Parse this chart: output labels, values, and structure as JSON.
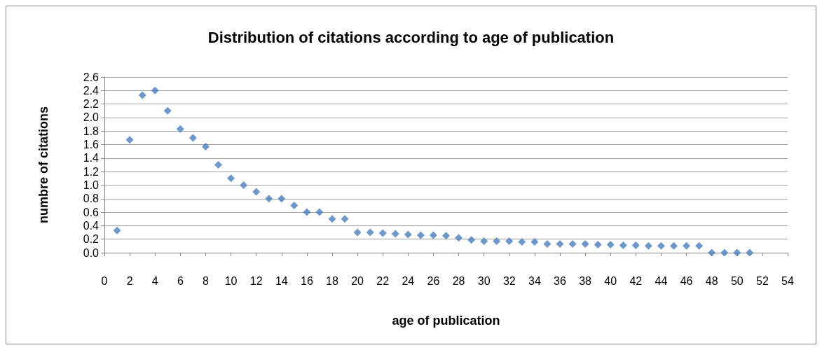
{
  "chart_data": {
    "type": "scatter",
    "title": "Distribution of citations according to age of publication",
    "xlabel": "age of publication",
    "ylabel": "numbre of citations",
    "x": [
      1,
      2,
      3,
      4,
      5,
      6,
      7,
      8,
      9,
      10,
      11,
      12,
      13,
      14,
      15,
      16,
      17,
      18,
      19,
      20,
      21,
      22,
      23,
      24,
      25,
      26,
      27,
      28,
      29,
      30,
      31,
      32,
      33,
      34,
      35,
      36,
      37,
      38,
      39,
      40,
      41,
      42,
      43,
      44,
      45,
      46,
      47,
      48,
      49,
      50,
      51
    ],
    "values": [
      0.33,
      1.67,
      2.33,
      2.4,
      2.1,
      1.83,
      1.7,
      1.57,
      1.3,
      1.1,
      1.0,
      0.9,
      0.8,
      0.8,
      0.7,
      0.6,
      0.6,
      0.5,
      0.5,
      0.3,
      0.3,
      0.29,
      0.28,
      0.27,
      0.26,
      0.26,
      0.25,
      0.22,
      0.19,
      0.17,
      0.17,
      0.17,
      0.16,
      0.16,
      0.13,
      0.13,
      0.13,
      0.13,
      0.12,
      0.12,
      0.11,
      0.11,
      0.1,
      0.1,
      0.1,
      0.1,
      0.1,
      0,
      0,
      0,
      0
    ],
    "color": "#4a7ebb",
    "marker": "diamond",
    "grid": "y",
    "xlim": [
      0,
      54
    ],
    "xticks": [
      0,
      2,
      4,
      6,
      8,
      10,
      12,
      14,
      16,
      18,
      20,
      22,
      24,
      26,
      28,
      30,
      32,
      34,
      36,
      38,
      40,
      42,
      44,
      46,
      48,
      50,
      52,
      54
    ],
    "ylim": [
      0,
      2.6
    ],
    "yticks": [
      {
        "value": 0,
        "label": "0.0"
      },
      {
        "value": 0.2,
        "label": "0.2"
      },
      {
        "value": 0.4,
        "label": "0.4"
      },
      {
        "value": 0.6,
        "label": "0.6"
      },
      {
        "value": 0.8,
        "label": "0.8"
      },
      {
        "value": 1.0,
        "label": "1.0"
      },
      {
        "value": 1.2,
        "label": "1.2"
      },
      {
        "value": 1.4,
        "label": "1.4"
      },
      {
        "value": 1.6,
        "label": "1.6"
      },
      {
        "value": 1.8,
        "label": "1.8"
      },
      {
        "value": 2.0,
        "label": "2.0"
      },
      {
        "value": 2.2,
        "label": "2.2"
      },
      {
        "value": 2.4,
        "label": "2.4"
      },
      {
        "value": 2.6,
        "label": "2.6"
      }
    ]
  }
}
